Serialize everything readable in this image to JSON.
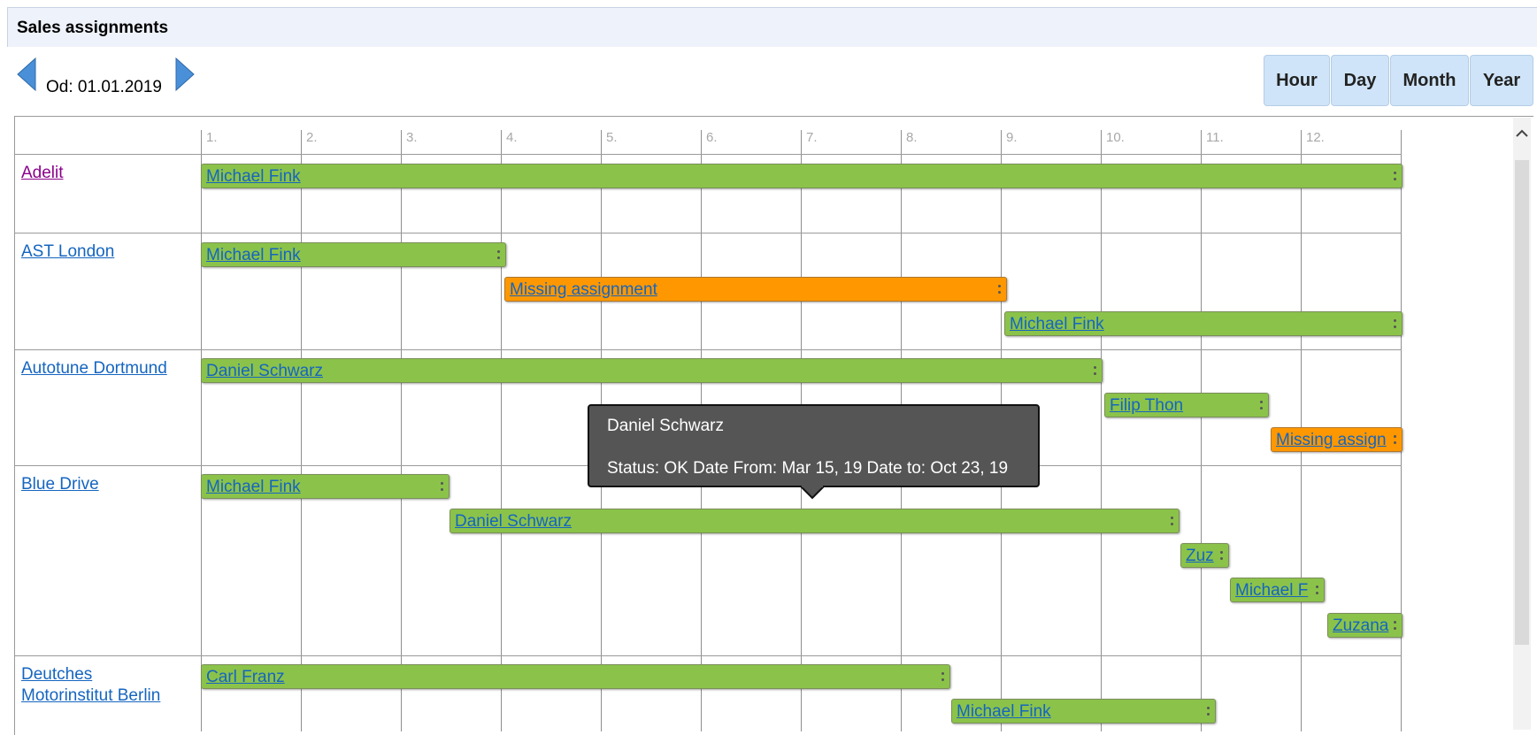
{
  "panel": {
    "title": "Sales assignments"
  },
  "navigation": {
    "prev_icon": "triangle-left-icon",
    "next_icon": "triangle-right-icon",
    "date_label": "Od: 01.01.2019",
    "arrow_color": "#4a90d9"
  },
  "view_buttons": [
    {
      "label": "Hour"
    },
    {
      "label": "Day"
    },
    {
      "label": "Month"
    },
    {
      "label": "Year"
    }
  ],
  "timeline": {
    "months": [
      "1.",
      "2.",
      "3.",
      "4.",
      "5.",
      "6.",
      "7.",
      "8.",
      "9.",
      "10.",
      "11.",
      "12."
    ]
  },
  "rows": [
    {
      "label": "Adelit",
      "visited": true,
      "bars": [
        {
          "label": "Michael Fink",
          "status": "ok"
        }
      ]
    },
    {
      "label": "AST London",
      "bars": [
        {
          "label": "Michael Fink",
          "status": "ok"
        },
        {
          "label": "Missing assignment",
          "status": "missing"
        },
        {
          "label": "Michael Fink",
          "status": "ok"
        }
      ]
    },
    {
      "label": "Autotune Dortmund",
      "bars": [
        {
          "label": "Daniel Schwarz",
          "status": "ok"
        },
        {
          "label": "Filip Thon",
          "status": "ok"
        },
        {
          "label": "Missing assign",
          "status": "missing"
        }
      ]
    },
    {
      "label": "Blue Drive",
      "bars": [
        {
          "label": "Michael Fink",
          "status": "ok"
        },
        {
          "label": "Daniel Schwarz",
          "status": "ok"
        },
        {
          "label": "Zuz",
          "status": "ok"
        },
        {
          "label": "Michael F",
          "status": "ok"
        },
        {
          "label": "Zuzana",
          "status": "ok"
        }
      ]
    },
    {
      "label_line1": "Deutches",
      "label_line2": "Motorinstitut Berlin",
      "bars": [
        {
          "label": "Carl Franz",
          "status": "ok"
        },
        {
          "label": "Michael Fink",
          "status": "ok"
        }
      ]
    }
  ],
  "tooltip": {
    "name": "Daniel Schwarz",
    "details": "Status: OK Date From: Mar 15, 19 Date to: Oct 23, 19"
  },
  "colors": {
    "ok_bar": "#8bc34a",
    "missing_bar": "#ff9800",
    "link": "#1565c0",
    "header_bg": "#eef2fa",
    "button_bg": "#cfe4f8",
    "tooltip_bg": "#555555"
  }
}
